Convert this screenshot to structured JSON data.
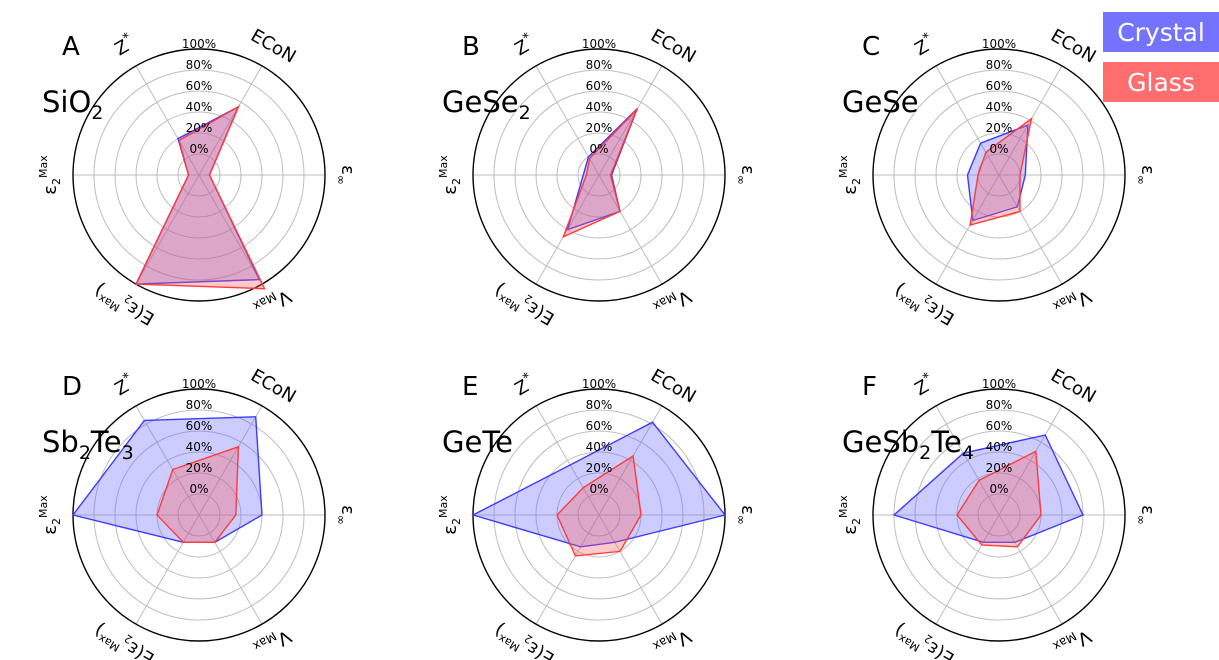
{
  "figure": {
    "axes": [
      "ECoN",
      "ε∞",
      "Vmax",
      "E(εMax)",
      "εMax",
      "Z*"
    ],
    "axis_labels": {
      "econ": "ECoN",
      "eps_inf": {
        "base": "ε",
        "sub": "∞"
      },
      "vmax": {
        "base": "V",
        "sub": "Max"
      },
      "e_eps2max": {
        "pre": "E(ε",
        "sub": "2",
        "sup": "Max",
        "post": ")"
      },
      "eps2max": {
        "base": "ε",
        "sub": "2",
        "sup": "Max"
      },
      "zstar": {
        "base": "Z",
        "sup": "*"
      }
    },
    "radial_ticks": [
      "0%",
      "20%",
      "40%",
      "60%",
      "80%",
      "100%"
    ],
    "legend": {
      "crystal": "Crystal",
      "glass": "Glass"
    }
  },
  "colors": {
    "crystal": "#3c3cff",
    "glass": "#ff3b3b",
    "crystal_fill": "rgba(100,100,255,0.33)",
    "glass_fill": "rgba(255,90,90,0.33)",
    "legend_crystal_bg": "#7373ff",
    "legend_glass_bg": "#ff6e6e",
    "grid": "#bdbdbd",
    "frame": "#000000"
  },
  "chart_data": [
    {
      "type": "radar",
      "panel": "A",
      "material": {
        "parts": [
          [
            "SiO",
            ""
          ],
          [
            "2",
            "sub"
          ]
        ]
      },
      "axes": [
        "ECoN",
        "ε∞",
        "Vmax",
        "E(εMax)",
        "εMax",
        "Z*"
      ],
      "rlim": [
        -20,
        100
      ],
      "grid": true,
      "legend": "top-right",
      "series": [
        {
          "name": "Crystal",
          "values": [
            55,
            -10,
            95,
            100,
            -10,
            20
          ]
        },
        {
          "name": "Glass",
          "values": [
            55,
            -10,
            105,
            100,
            -10,
            18
          ]
        }
      ]
    },
    {
      "type": "radar",
      "panel": "B",
      "material": {
        "parts": [
          [
            "GeSe",
            ""
          ],
          [
            "2",
            "sub"
          ]
        ]
      },
      "axes": [
        "ECoN",
        "ε∞",
        "Vmax",
        "E(εMax)",
        "εMax",
        "Z*"
      ],
      "rlim": [
        -20,
        100
      ],
      "grid": true,
      "legend": "top-right",
      "series": [
        {
          "name": "Crystal",
          "values": [
            53,
            -8,
            20,
            40,
            -5,
            0
          ]
        },
        {
          "name": "Glass",
          "values": [
            52,
            -9,
            20,
            48,
            -8,
            -2
          ]
        }
      ]
    },
    {
      "type": "radar",
      "panel": "C",
      "material": {
        "parts": [
          [
            "GeSe",
            ""
          ]
        ]
      },
      "axes": [
        "ECoN",
        "ε∞",
        "Vmax",
        "E(εMax)",
        "εMax",
        "Z*"
      ],
      "rlim": [
        -20,
        100
      ],
      "grid": true,
      "legend": "top-right",
      "series": [
        {
          "name": "Crystal",
          "values": [
            35,
            5,
            15,
            30,
            10,
            15
          ]
        },
        {
          "name": "Glass",
          "values": [
            42,
            0,
            20,
            35,
            0,
            5
          ]
        }
      ]
    },
    {
      "type": "radar",
      "panel": "D",
      "material": {
        "parts": [
          [
            "Sb",
            ""
          ],
          [
            "2",
            "sub"
          ],
          [
            "Te",
            ""
          ],
          [
            "3",
            "sub"
          ]
        ]
      },
      "axes": [
        "ECoN",
        "ε∞",
        "Vmax",
        "E(εMax)",
        "εMax",
        "Z*"
      ],
      "rlim": [
        -20,
        100
      ],
      "grid": true,
      "legend": "top-right",
      "series": [
        {
          "name": "Crystal",
          "values": [
            88,
            40,
            10,
            10,
            100,
            84
          ]
        },
        {
          "name": "Glass",
          "values": [
            55,
            15,
            10,
            10,
            20,
            30
          ]
        }
      ]
    },
    {
      "type": "radar",
      "panel": "E",
      "material": {
        "parts": [
          [
            "GeTe",
            ""
          ]
        ]
      },
      "axes": [
        "ECoN",
        "ε∞",
        "Vmax",
        "E(εMax)",
        "εMax",
        "Z*"
      ],
      "rlim": [
        -20,
        100
      ],
      "grid": true,
      "legend": "top-right",
      "series": [
        {
          "name": "Crystal",
          "values": [
            82,
            100,
            10,
            15,
            100,
            35
          ]
        },
        {
          "name": "Glass",
          "values": [
            45,
            20,
            20,
            25,
            20,
            10
          ]
        }
      ]
    },
    {
      "type": "radar",
      "panel": "F",
      "material": {
        "parts": [
          [
            "GeSb",
            ""
          ],
          [
            "2",
            "sub"
          ],
          [
            "Te",
            ""
          ],
          [
            "4",
            "sub"
          ]
        ]
      },
      "axes": [
        "ECoN",
        "ε∞",
        "Vmax",
        "E(εMax)",
        "εMax",
        "Z*"
      ],
      "rlim": [
        -20,
        100
      ],
      "grid": true,
      "legend": "top-right",
      "series": [
        {
          "name": "Crystal",
          "values": [
            68,
            60,
            10,
            10,
            80,
            48
          ]
        },
        {
          "name": "Glass",
          "values": [
            50,
            20,
            15,
            13,
            20,
            18
          ]
        }
      ]
    }
  ]
}
